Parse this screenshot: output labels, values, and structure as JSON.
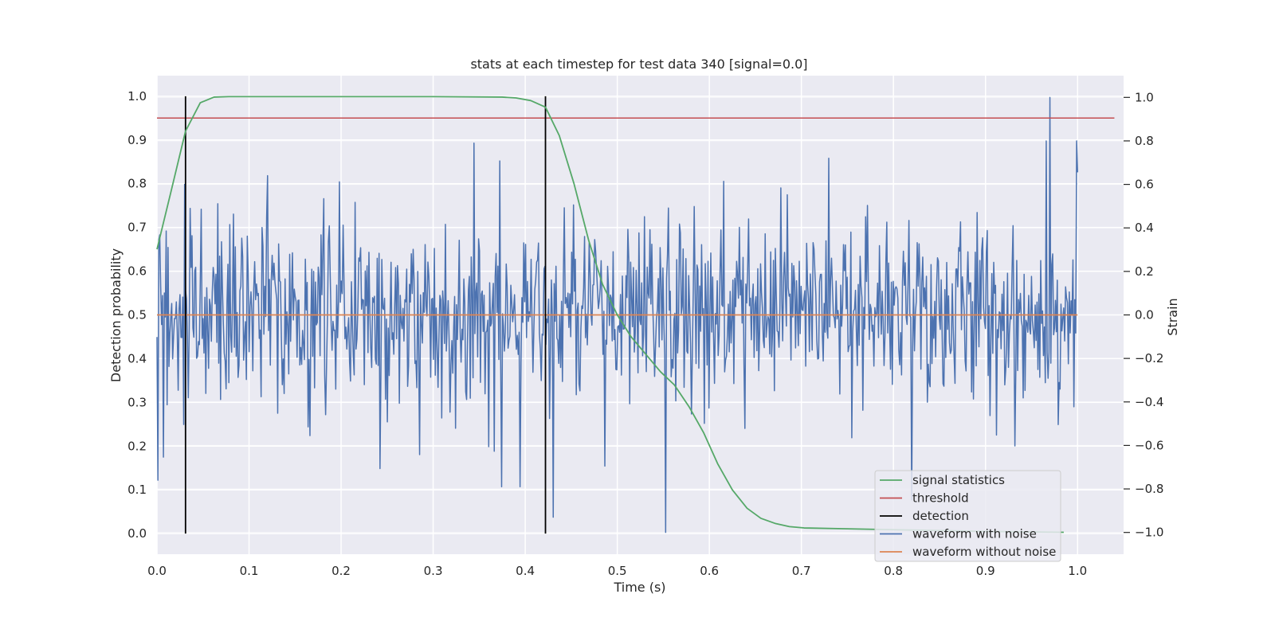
{
  "chart_data": {
    "type": "line",
    "title": "stats at each timestep for test data 340 [signal=0.0]",
    "xlabel": "Time (s)",
    "ylabel": "Detection probability",
    "y2label": "Strain",
    "xlim": [
      0.0,
      1.05
    ],
    "ylim": [
      -0.047,
      1.047
    ],
    "y2lim": [
      -1.1,
      1.1
    ],
    "xticks": [
      "0.0",
      "0.1",
      "0.2",
      "0.3",
      "0.4",
      "0.5",
      "0.6",
      "0.7",
      "0.8",
      "0.9",
      "1.0"
    ],
    "yticks": [
      "0.0",
      "0.1",
      "0.2",
      "0.3",
      "0.4",
      "0.5",
      "0.6",
      "0.7",
      "0.8",
      "0.9",
      "1.0"
    ],
    "y2ticks": [
      "−1.0",
      "−0.8",
      "−0.6",
      "−0.4",
      "−0.2",
      "0.0",
      "0.2",
      "0.4",
      "0.6",
      "0.8",
      "1.0"
    ],
    "grid": true,
    "legend_position": "bottom-right",
    "colors": {
      "signal_statistics": "#55a868",
      "threshold": "#c44e52",
      "detection": "#000000",
      "waveform_with_noise": "#4c72b0",
      "waveform_without_noise": "#dd8452",
      "plot_background": "#eaeaf2",
      "grid": "#ffffff"
    },
    "series": [
      {
        "name": "signal statistics",
        "axis": "left",
        "x": [
          0.0,
          0.015,
          0.031,
          0.047,
          0.062,
          0.078,
          0.1,
          0.2,
          0.3,
          0.375,
          0.39,
          0.406,
          0.422,
          0.437,
          0.453,
          0.469,
          0.484,
          0.5,
          0.515,
          0.531,
          0.547,
          0.562,
          0.578,
          0.594,
          0.609,
          0.625,
          0.641,
          0.656,
          0.672,
          0.687,
          0.703,
          0.75,
          0.8,
          0.85,
          0.9,
          0.95,
          0.985
        ],
        "y": [
          0.65,
          0.78,
          0.92,
          0.985,
          0.998,
          0.999,
          0.999,
          0.999,
          0.999,
          0.998,
          0.996,
          0.99,
          0.975,
          0.91,
          0.8,
          0.67,
          0.57,
          0.5,
          0.45,
          0.41,
          0.37,
          0.34,
          0.29,
          0.23,
          0.16,
          0.1,
          0.058,
          0.035,
          0.023,
          0.016,
          0.013,
          0.011,
          0.009,
          0.007,
          0.005,
          0.004,
          0.003
        ]
      },
      {
        "name": "threshold",
        "axis": "left",
        "x": [
          0.0,
          1.04
        ],
        "y": [
          0.95,
          0.95
        ]
      },
      {
        "name": "detection",
        "axis": "left",
        "events": [
          0.031,
          0.422
        ],
        "y": [
          0.0,
          1.0
        ]
      },
      {
        "name": "waveform with noise",
        "axis": "right",
        "x_range": [
          0.0,
          1.0
        ],
        "n_samples": 1000,
        "description_values": "white noise, std about 0.22 strain, peaks: 1.0 near t=0.97, -1.0 near t=0.553",
        "peaks": [
          {
            "x": 0.001,
            "y": -0.76
          },
          {
            "x": 0.03,
            "y": 0.6
          },
          {
            "x": 0.12,
            "y": 0.64
          },
          {
            "x": 0.344,
            "y": 0.79
          },
          {
            "x": 0.374,
            "y": -0.79
          },
          {
            "x": 0.394,
            "y": -0.79
          },
          {
            "x": 0.43,
            "y": -0.93
          },
          {
            "x": 0.553,
            "y": -1.0
          },
          {
            "x": 0.73,
            "y": 0.72
          },
          {
            "x": 0.82,
            "y": -0.85
          },
          {
            "x": 0.966,
            "y": 0.8
          },
          {
            "x": 0.97,
            "y": 1.0
          },
          {
            "x": 0.999,
            "y": 0.8
          }
        ]
      },
      {
        "name": "waveform without noise",
        "axis": "right",
        "x": [
          0.0,
          1.0
        ],
        "y": [
          0.0,
          0.0
        ]
      }
    ]
  }
}
